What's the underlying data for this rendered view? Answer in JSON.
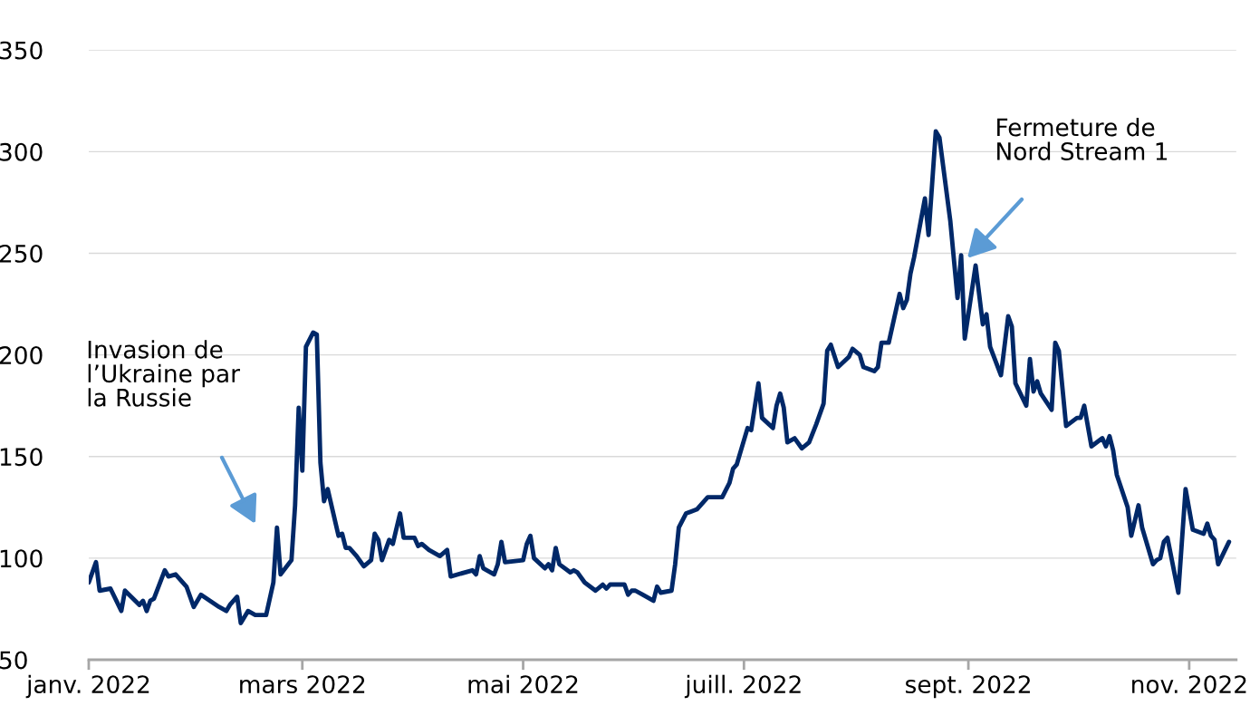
{
  "chart_data": {
    "type": "line",
    "x": [
      "2022-01-01",
      "2022-01-03",
      "2022-01-04",
      "2022-01-07",
      "2022-01-10",
      "2022-01-11",
      "2022-01-15",
      "2022-01-16",
      "2022-01-17",
      "2022-01-18",
      "2022-01-19",
      "2022-01-22",
      "2022-01-23",
      "2022-01-25",
      "2022-01-28",
      "2022-01-30",
      "2022-02-01",
      "2022-02-06",
      "2022-02-08",
      "2022-02-09",
      "2022-02-11",
      "2022-02-12",
      "2022-02-14",
      "2022-02-16",
      "2022-02-19",
      "2022-02-21",
      "2022-02-22",
      "2022-02-23",
      "2022-02-26",
      "2022-02-27",
      "2022-02-28",
      "2022-03-01",
      "2022-03-02",
      "2022-03-04",
      "2022-03-05",
      "2022-03-06",
      "2022-03-07",
      "2022-03-08",
      "2022-03-11",
      "2022-03-12",
      "2022-03-13",
      "2022-03-14",
      "2022-03-16",
      "2022-03-18",
      "2022-03-20",
      "2022-03-21",
      "2022-03-22",
      "2022-03-23",
      "2022-03-25",
      "2022-03-26",
      "2022-03-28",
      "2022-03-29",
      "2022-04-01",
      "2022-04-02",
      "2022-04-03",
      "2022-04-05",
      "2022-04-08",
      "2022-04-10",
      "2022-04-11",
      "2022-04-17",
      "2022-04-18",
      "2022-04-19",
      "2022-04-20",
      "2022-04-23",
      "2022-04-24",
      "2022-04-25",
      "2022-04-26",
      "2022-05-01",
      "2022-05-02",
      "2022-05-03",
      "2022-05-04",
      "2022-05-07",
      "2022-05-08",
      "2022-05-09",
      "2022-05-10",
      "2022-05-11",
      "2022-05-14",
      "2022-05-15",
      "2022-05-16",
      "2022-05-18",
      "2022-05-21",
      "2022-05-23",
      "2022-05-24",
      "2022-05-25",
      "2022-05-29",
      "2022-05-30",
      "2022-05-31",
      "2022-06-01",
      "2022-06-03",
      "2022-06-06",
      "2022-06-07",
      "2022-06-08",
      "2022-06-11",
      "2022-06-12",
      "2022-06-13",
      "2022-06-15",
      "2022-06-18",
      "2022-06-19",
      "2022-06-21",
      "2022-06-25",
      "2022-06-27",
      "2022-06-28",
      "2022-06-29",
      "2022-07-02",
      "2022-07-03",
      "2022-07-05",
      "2022-07-06",
      "2022-07-09",
      "2022-07-10",
      "2022-07-11",
      "2022-07-12",
      "2022-07-13",
      "2022-07-15",
      "2022-07-17",
      "2022-07-19",
      "2022-07-21",
      "2022-07-23",
      "2022-07-24",
      "2022-07-25",
      "2022-07-27",
      "2022-07-30",
      "2022-07-31",
      "2022-08-02",
      "2022-08-03",
      "2022-08-06",
      "2022-08-07",
      "2022-08-08",
      "2022-08-10",
      "2022-08-13",
      "2022-08-14",
      "2022-08-15",
      "2022-08-16",
      "2022-08-17",
      "2022-08-20",
      "2022-08-21",
      "2022-08-23",
      "2022-08-24",
      "2022-08-27",
      "2022-08-29",
      "2022-08-30",
      "2022-08-31",
      "2022-09-03",
      "2022-09-05",
      "2022-09-06",
      "2022-09-07",
      "2022-09-10",
      "2022-09-12",
      "2022-09-13",
      "2022-09-14",
      "2022-09-17",
      "2022-09-18",
      "2022-09-19",
      "2022-09-20",
      "2022-09-21",
      "2022-09-24",
      "2022-09-25",
      "2022-09-26",
      "2022-09-28",
      "2022-10-01",
      "2022-10-02",
      "2022-10-03",
      "2022-10-05",
      "2022-10-08",
      "2022-10-09",
      "2022-10-10",
      "2022-10-11",
      "2022-10-12",
      "2022-10-15",
      "2022-10-16",
      "2022-10-18",
      "2022-10-19",
      "2022-10-22",
      "2022-10-23",
      "2022-10-24",
      "2022-10-25",
      "2022-10-26",
      "2022-10-29",
      "2022-10-31",
      "2022-11-02",
      "2022-11-05",
      "2022-11-06",
      "2022-11-07",
      "2022-11-08",
      "2022-11-09",
      "2022-11-12"
    ],
    "series": [
      {
        "color": "#002868",
        "values": [
          88,
          98,
          84,
          85,
          74,
          84,
          77,
          79,
          74,
          79,
          80,
          94,
          91,
          92,
          86,
          76,
          82,
          76,
          74,
          77,
          81,
          68,
          74,
          72,
          72,
          88,
          115,
          92,
          99,
          126,
          174,
          143,
          204,
          211,
          210,
          147,
          128,
          134,
          111,
          112,
          105,
          105,
          101,
          96,
          99,
          112,
          109,
          99,
          109,
          107,
          122,
          110,
          110,
          106,
          107,
          104,
          101,
          104,
          91,
          94,
          92,
          101,
          95,
          92,
          97,
          108,
          98,
          99,
          107,
          111,
          100,
          95,
          97,
          94,
          105,
          97,
          93,
          94,
          93,
          88,
          84,
          87,
          85,
          87,
          87,
          82,
          84,
          84,
          82,
          79,
          86,
          83,
          84,
          97,
          115,
          122,
          124,
          126,
          130,
          130,
          137,
          144,
          146,
          164,
          163,
          186,
          169,
          164,
          175,
          181,
          174,
          157,
          159,
          154,
          157,
          166,
          176,
          202,
          205,
          194,
          199,
          203,
          200,
          194,
          192,
          194,
          206,
          206,
          230,
          223,
          227,
          240,
          248,
          277,
          259,
          310,
          307,
          266,
          228,
          249,
          208,
          244,
          215,
          220,
          204,
          190,
          219,
          214,
          186,
          175,
          198,
          182,
          187,
          181,
          173,
          206,
          202,
          165,
          169,
          169,
          175,
          155,
          159,
          155,
          160,
          153,
          141,
          125,
          111,
          126,
          115,
          97,
          99,
          100,
          108,
          110,
          83,
          134,
          114,
          112,
          117,
          111,
          109,
          97,
          108
        ]
      }
    ],
    "xlim": [
      "2022-01-01",
      "2022-11-14"
    ],
    "xticks": [
      {
        "value": "2022-01-01",
        "label": "janv. 2022"
      },
      {
        "value": "2022-03-01",
        "label": "mars 2022"
      },
      {
        "value": "2022-05-01",
        "label": "mai 2022"
      },
      {
        "value": "2022-07-01",
        "label": "juill. 2022"
      },
      {
        "value": "2022-09-01",
        "label": "sept. 2022"
      },
      {
        "value": "2022-11-01",
        "label": "nov. 2022"
      }
    ],
    "ylim": [
      50,
      350
    ],
    "yticks": [
      50,
      100,
      150,
      200,
      250,
      300,
      350
    ],
    "grid": "y",
    "annotations": [
      "Invasion de\nl’Ukraine par\nla Russie",
      "Fermeture de\nNord Stream 1"
    ]
  }
}
